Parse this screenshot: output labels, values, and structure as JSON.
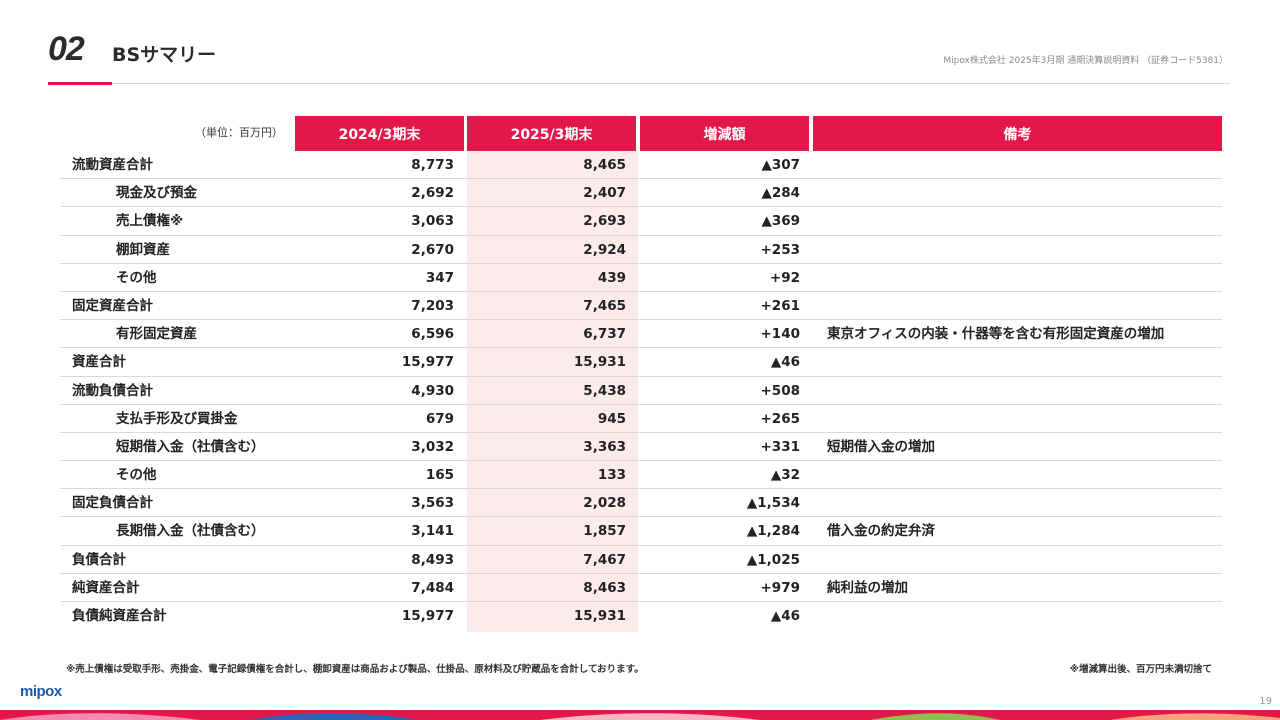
{
  "header": {
    "section_number": "02",
    "title": "BSサマリー",
    "company_line": "Mipox株式会社 2025年3月期 通期決算説明資料 （証券コード5381）"
  },
  "table": {
    "unit": "（単位：百万円）",
    "columns": [
      "2024/3期末",
      "2025/3期末",
      "増減額",
      "備考"
    ],
    "rows": [
      {
        "label": "流動資産合計",
        "v2024": "8,773",
        "v2025": "8,465",
        "diff": "▲307",
        "note": ""
      },
      {
        "label": "現金及び預金",
        "v2024": "2,692",
        "v2025": "2,407",
        "diff": "▲284",
        "note": ""
      },
      {
        "label": "売上債権※",
        "v2024": "3,063",
        "v2025": "2,693",
        "diff": "▲369",
        "note": ""
      },
      {
        "label": "棚卸資産",
        "v2024": "2,670",
        "v2025": "2,924",
        "diff": "+253",
        "note": ""
      },
      {
        "label": "その他",
        "v2024": "347",
        "v2025": "439",
        "diff": "+92",
        "note": ""
      },
      {
        "label": "固定資産合計",
        "v2024": "7,203",
        "v2025": "7,465",
        "diff": "+261",
        "note": ""
      },
      {
        "label": "有形固定資産",
        "v2024": "6,596",
        "v2025": "6,737",
        "diff": "+140",
        "note": "東京オフィスの内装・什器等を含む有形固定資産の増加"
      },
      {
        "label": "資産合計",
        "v2024": "15,977",
        "v2025": "15,931",
        "diff": "▲46",
        "note": ""
      },
      {
        "label": "流動負債合計",
        "v2024": "4,930",
        "v2025": "5,438",
        "diff": "+508",
        "note": ""
      },
      {
        "label": "支払手形及び買掛金",
        "v2024": "679",
        "v2025": "945",
        "diff": "+265",
        "note": ""
      },
      {
        "label": "短期借入金（社債含む）",
        "v2024": "3,032",
        "v2025": "3,363",
        "diff": "+331",
        "note": "短期借入金の増加"
      },
      {
        "label": "その他",
        "v2024": "165",
        "v2025": "133",
        "diff": "▲32",
        "note": ""
      },
      {
        "label": "固定負債合計",
        "v2024": "3,563",
        "v2025": "2,028",
        "diff": "▲1,534",
        "note": ""
      },
      {
        "label": "長期借入金（社債含む）",
        "v2024": "3,141",
        "v2025": "1,857",
        "diff": "▲1,284",
        "note": "借入金の約定弁済"
      },
      {
        "label": "負債合計",
        "v2024": "8,493",
        "v2025": "7,467",
        "diff": "▲1,025",
        "note": ""
      },
      {
        "label": "純資産合計",
        "v2024": "7,484",
        "v2025": "8,463",
        "diff": "+979",
        "note": "純利益の増加"
      },
      {
        "label": "負債純資産合計",
        "v2024": "15,977",
        "v2025": "15,931",
        "diff": "▲46",
        "note": ""
      }
    ]
  },
  "footer": {
    "note_left": "※売上債権は受取手形、売掛金、電子記録債権を合計し、棚卸資産は商品および製品、仕掛品、原材料及び貯蔵品を合計しております。",
    "note_right": "※増減算出後、百万円未満切捨て",
    "logo": "mipox",
    "page_number": "19"
  },
  "colors": {
    "accent": "#e2184a",
    "highlight_column": "#fcebed"
  }
}
